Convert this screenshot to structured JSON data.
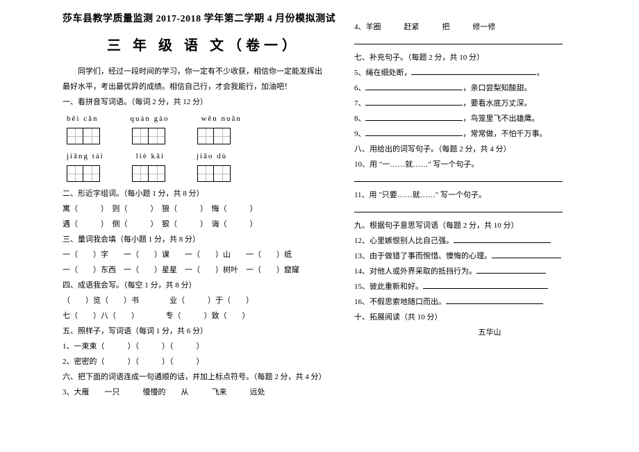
{
  "header": {
    "line1": "莎车县教学质量监测 2017-2018 学年第二学期 4 月份模拟测试",
    "line2": "三 年 级 语 文（卷一）"
  },
  "intro": {
    "p1": "同学们，经过一段时间的学习，你一定有不少收获，相信你一定能发挥出",
    "p2": "最好水平，考出最优异的成绩。相信自己行，才会我能行，加油吧！"
  },
  "left": {
    "s1": "一、看拼音写词语。（每词 2 分，共 12 分）",
    "pinyin_row1": {
      "a": "bēi  cǎn",
      "b": "quàn  gào",
      "c": "wēn  nuǎn"
    },
    "pinyin_row2": {
      "a": "jiǎng tái",
      "b": "liè  kāi",
      "c": "jiǎo  dù"
    },
    "s2": "二、形近字组词。（每小题 1 分，共 8 分）",
    "s2_r1": "寓（　　　）　则（　　　）　狼（　　　）　悔（　　　）",
    "s2_r2": "遇（　　　）　侧（　　　）　狠（　　　）　诲（　　　）",
    "s3": "三、量词我会填（每小题 1 分，共 8 分）",
    "s3_r1": "一（　　）字　　一（　　）课　　一（　　）山　　一（　　）纸",
    "s3_r2": "一（　　）东西　一（　　）星星　一（　　）树叶　一（　　）窟窿",
    "s4": "四、成语我会写。（每空 1 分，共 8 分）",
    "s4_r1": "（　　）览（　　）书　　　　业（　　　）于（　　）",
    "s4_r2": "七（　　）八（　　）　　　　专（　　　）致（　　）",
    "s5": "五、照样子，写词语（每词 1 分，共 6 分）",
    "s5_r1": "1、一束束（　　　）（　　　）（　　　）",
    "s5_r2": "2、密密的（　　　）（　　　）（　　　）",
    "s6": "六、把下面的词语连成一句通顺的话，并加上标点符号。（每题 2 分，共 4 分）",
    "s6_r1": "3、大雁　　一只　　　慢慢的　　从　　　飞来　　　远处"
  },
  "right": {
    "r4": "4、羊圈　　　赶紧　　　把　　　修一修",
    "s7": "七、补充句子。（每题 2 分，共 10 分）",
    "r5_a": "5、绳在细处断，",
    "r6_b": "，亲口尝梨知酸甜。",
    "r7_b": "，要看水底万丈深。",
    "r8_b": "，鸟笼里飞不出雄鹰。",
    "r9_b": "，常常做，不怕千万事。",
    "s8": "八、用给出的词写句子。（每题 2 分，共 4 分）",
    "r10": "10、用 \"一……就……\" 写一个句子。",
    "r11": "11、用 \"只要……就……\" 写一个句子。",
    "s9": "九、根据句子意思写词语（每题 2 分，共 10 分）",
    "r12": "12、心里嫉恨别人比自己强。",
    "r13": "13、由于做错了事而惋惜、懊悔的心理。",
    "r14": "14、对他人或外界采取的抵挡行为。",
    "r15": "15、彼此重新和好。",
    "r16": "16、不假思索地随口而出。",
    "s10": "十、拓展阅读（共 10 分）",
    "poem_title": "五华山"
  }
}
